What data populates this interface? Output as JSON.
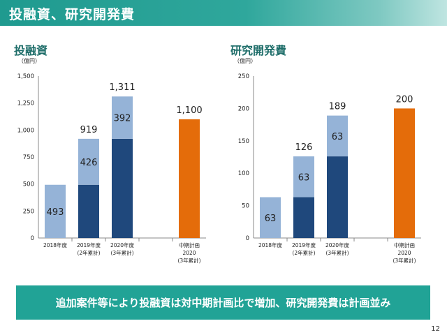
{
  "header": {
    "title": "投融資、研究開発費"
  },
  "banner": {
    "text": "追加案件等により投融資は対中期計画比で増加、研究開発費は計画並み"
  },
  "page_number": "12",
  "colors": {
    "light": "#95b3d7",
    "dark": "#1f487c",
    "plan": "#e46c0a",
    "header": "#1f9a8f",
    "banner": "#21a396"
  },
  "chart_data": [
    {
      "type": "bar",
      "stacked": true,
      "title": "投融資",
      "unit": "（億円）",
      "ylim": [
        0,
        1500
      ],
      "yticks": [
        0,
        250,
        500,
        750,
        "1,000",
        "1,250",
        "1,500"
      ],
      "ytick_values": [
        0,
        250,
        500,
        750,
        1000,
        1250,
        1500
      ],
      "categories": [
        [
          "2018年度"
        ],
        [
          "2019年度",
          "(2年累計)"
        ],
        [
          "2020年度",
          "(3年累計)"
        ],
        [],
        [
          "中期計画",
          "2020",
          "(3年累計)"
        ]
      ],
      "series": [
        {
          "values": [
            0,
            493,
            919,
            0,
            0
          ],
          "color": "#1f487c"
        },
        {
          "values": [
            493,
            426,
            392,
            0,
            0
          ],
          "color": "#95b3d7"
        },
        {
          "values": [
            0,
            0,
            0,
            0,
            1100
          ],
          "color": "#e46c0a"
        }
      ],
      "segment_labels": [
        {
          "index": 0,
          "level": 246.5,
          "text": "493"
        },
        {
          "index": 1,
          "level": 706,
          "text": "426"
        },
        {
          "index": 2,
          "level": 1115,
          "text": "392"
        }
      ],
      "total_labels": [
        {
          "index": 1,
          "value": 919,
          "text": "919"
        },
        {
          "index": 2,
          "value": 1311,
          "text": "1,311"
        },
        {
          "index": 4,
          "value": 1100,
          "text": "1,100"
        }
      ]
    },
    {
      "type": "bar",
      "stacked": true,
      "title": "研究開発費",
      "unit": "（億円）",
      "ylim": [
        0,
        250
      ],
      "yticks": [
        0,
        50,
        100,
        150,
        200,
        250
      ],
      "ytick_values": [
        0,
        50,
        100,
        150,
        200,
        250
      ],
      "categories": [
        [
          "2018年度"
        ],
        [
          "2019年度",
          "(2年累計)"
        ],
        [
          "2020年度",
          "(3年累計)"
        ],
        [],
        [
          "中期計画",
          "2020",
          "(3年累計)"
        ]
      ],
      "series": [
        {
          "values": [
            0,
            63,
            126,
            0,
            0
          ],
          "color": "#1f487c"
        },
        {
          "values": [
            63,
            63,
            63,
            0,
            0
          ],
          "color": "#95b3d7"
        },
        {
          "values": [
            0,
            0,
            0,
            0,
            200
          ],
          "color": "#e46c0a"
        }
      ],
      "segment_labels": [
        {
          "index": 0,
          "level": 31.5,
          "text": "63"
        },
        {
          "index": 1,
          "level": 94.5,
          "text": "63"
        },
        {
          "index": 2,
          "level": 157.5,
          "text": "63"
        }
      ],
      "total_labels": [
        {
          "index": 1,
          "value": 126,
          "text": "126"
        },
        {
          "index": 2,
          "value": 189,
          "text": "189"
        },
        {
          "index": 4,
          "value": 200,
          "text": "200"
        }
      ]
    }
  ]
}
